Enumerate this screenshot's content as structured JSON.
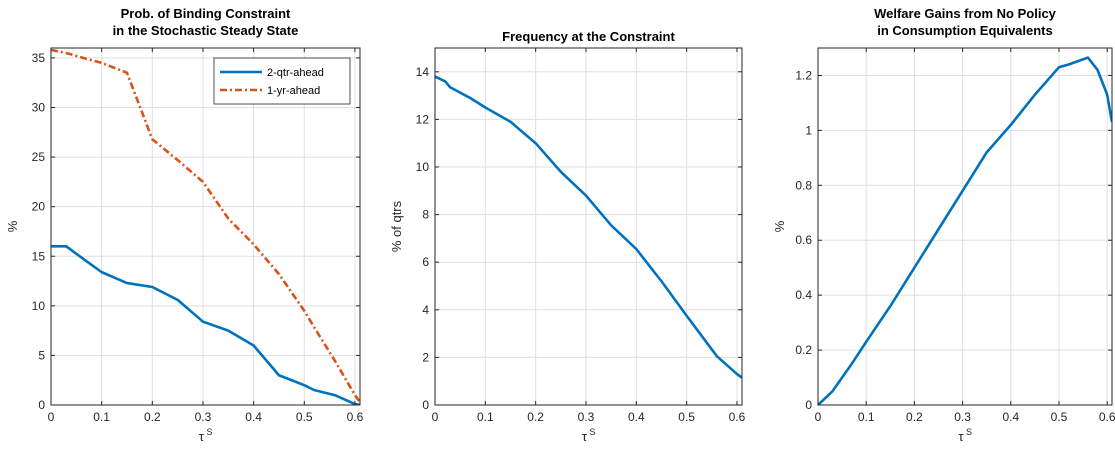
{
  "chart_data": [
    {
      "type": "line",
      "title": [
        "Prob. of Binding Constraint",
        "in the Stochastic Steady State"
      ],
      "xlabel": "τ",
      "xlabel_sup": "S",
      "ylabel": "%",
      "xlim": [
        0,
        0.61
      ],
      "ylim": [
        0,
        36
      ],
      "xticks": [
        0,
        0.1,
        0.2,
        0.3,
        0.4,
        0.5,
        0.6
      ],
      "xtick_labels": [
        "0",
        "0.1",
        "0.2",
        "0.3",
        "0.4",
        "0.5",
        "0.6"
      ],
      "yticks": [
        0,
        5,
        10,
        15,
        20,
        25,
        30,
        35
      ],
      "ytick_labels": [
        "0",
        "5",
        "10",
        "15",
        "20",
        "25",
        "30",
        "35"
      ],
      "grid": true,
      "legend": "top-right",
      "series": [
        {
          "name": "2-qtr-ahead",
          "color": "#0072BD",
          "style": "solid",
          "x": [
            0,
            0.03,
            0.07,
            0.1,
            0.15,
            0.2,
            0.25,
            0.3,
            0.35,
            0.4,
            0.45,
            0.5,
            0.52,
            0.56,
            0.6,
            0.61
          ],
          "y": [
            16,
            16,
            14.5,
            13.4,
            12.3,
            11.9,
            10.6,
            8.4,
            7.5,
            6,
            3,
            2,
            1.5,
            1,
            0.1,
            0
          ]
        },
        {
          "name": "1-yr-ahead",
          "color": "#D95319",
          "style": "dashdot",
          "x": [
            0,
            0.03,
            0.07,
            0.1,
            0.15,
            0.2,
            0.25,
            0.3,
            0.35,
            0.4,
            0.45,
            0.5,
            0.52,
            0.56,
            0.6,
            0.61
          ],
          "y": [
            35.8,
            35.5,
            34.9,
            34.5,
            33.5,
            26.8,
            24.7,
            22.5,
            18.8,
            16.2,
            13.2,
            9.5,
            7.8,
            4.5,
            1,
            0.3
          ]
        }
      ]
    },
    {
      "type": "line",
      "title": [
        "Frequency at the Constraint"
      ],
      "xlabel": "τ",
      "xlabel_sup": "S",
      "ylabel": "% of qtrs",
      "xlim": [
        0,
        0.61
      ],
      "ylim": [
        0,
        15
      ],
      "xticks": [
        0,
        0.1,
        0.2,
        0.3,
        0.4,
        0.5,
        0.6
      ],
      "xtick_labels": [
        "0",
        "0.1",
        "0.2",
        "0.3",
        "0.4",
        "0.5",
        "0.6"
      ],
      "yticks": [
        0,
        2,
        4,
        6,
        8,
        10,
        12,
        14
      ],
      "ytick_labels": [
        "0",
        "2",
        "4",
        "6",
        "8",
        "10",
        "12",
        "14"
      ],
      "grid": true,
      "series": [
        {
          "color": "#0072BD",
          "style": "solid",
          "x": [
            0,
            0.02,
            0.03,
            0.07,
            0.1,
            0.15,
            0.2,
            0.25,
            0.3,
            0.35,
            0.4,
            0.45,
            0.5,
            0.56,
            0.6,
            0.61
          ],
          "y": [
            13.8,
            13.6,
            13.35,
            12.9,
            12.5,
            11.9,
            11,
            9.8,
            8.8,
            7.55,
            6.55,
            5.2,
            3.75,
            2.05,
            1.3,
            1.15
          ]
        }
      ]
    },
    {
      "type": "line",
      "title": [
        "Welfare Gains from No Policy",
        "in Consumption Equivalents"
      ],
      "xlabel": "τ",
      "xlabel_sup": "S",
      "ylabel": "%",
      "xlim": [
        0,
        0.61
      ],
      "ylim": [
        0,
        1.3
      ],
      "xticks": [
        0,
        0.1,
        0.2,
        0.3,
        0.4,
        0.5,
        0.6
      ],
      "xtick_labels": [
        "0",
        "0.1",
        "0.2",
        "0.3",
        "0.4",
        "0.5",
        "0.6"
      ],
      "yticks": [
        0,
        0.2,
        0.4,
        0.6,
        0.8,
        1,
        1.2
      ],
      "ytick_labels": [
        "0",
        "0.2",
        "0.4",
        "0.6",
        "0.8",
        "1",
        "1.2"
      ],
      "grid": true,
      "series": [
        {
          "color": "#0072BD",
          "style": "solid",
          "x": [
            0,
            0.03,
            0.07,
            0.1,
            0.15,
            0.2,
            0.25,
            0.3,
            0.35,
            0.4,
            0.45,
            0.5,
            0.52,
            0.56,
            0.58,
            0.6,
            0.61
          ],
          "y": [
            0,
            0.05,
            0.15,
            0.23,
            0.36,
            0.5,
            0.64,
            0.78,
            0.92,
            1.02,
            1.13,
            1.23,
            1.24,
            1.265,
            1.22,
            1.13,
            1.03
          ]
        }
      ]
    }
  ]
}
